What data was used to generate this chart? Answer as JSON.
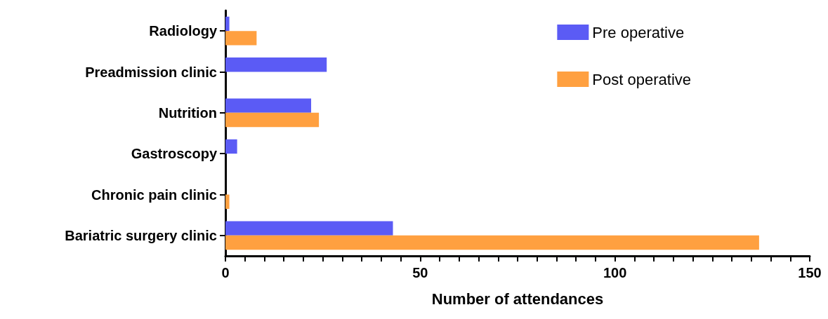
{
  "chart_data": {
    "type": "bar",
    "orientation": "horizontal",
    "xlabel": "Number of attendances",
    "categories": [
      "Radiology",
      "Preadmission clinic",
      "Nutrition",
      "Gastroscopy",
      "Chronic pain clinic",
      "Bariatric surgery clinic"
    ],
    "series": [
      {
        "name": "Pre operative",
        "color": "#5b5bf5",
        "values": [
          1,
          26,
          22,
          3,
          0,
          43
        ]
      },
      {
        "name": "Post operative",
        "color": "#ffa040",
        "values": [
          8,
          0,
          24,
          0,
          1,
          137
        ]
      }
    ],
    "xlim": [
      0,
      150
    ],
    "xticks": [
      0,
      {
        "value": 5,
        "label": null
      },
      {
        "value": 10,
        "label": null
      },
      {
        "value": 15,
        "label": null
      },
      {
        "value": 20,
        "label": null
      },
      {
        "value": 25,
        "label": null
      },
      {
        "value": 30,
        "label": null
      },
      {
        "value": 35,
        "label": null
      },
      {
        "value": 40,
        "label": null
      },
      {
        "value": 45,
        "label": null
      },
      50,
      {
        "value": 55,
        "label": null
      },
      {
        "value": 60,
        "label": null
      },
      {
        "value": 65,
        "label": null
      },
      {
        "value": 70,
        "label": null
      },
      {
        "value": 75,
        "label": null
      },
      {
        "value": 80,
        "label": null
      },
      {
        "value": 85,
        "label": null
      },
      {
        "value": 90,
        "label": null
      },
      {
        "value": 95,
        "label": null
      },
      100,
      {
        "value": 105,
        "label": null
      },
      {
        "value": 110,
        "label": null
      },
      {
        "value": 115,
        "label": null
      },
      {
        "value": 120,
        "label": null
      },
      {
        "value": 125,
        "label": null
      },
      {
        "value": 130,
        "label": null
      },
      {
        "value": 135,
        "label": null
      },
      {
        "value": 140,
        "label": null
      },
      {
        "value": 145,
        "label": null
      },
      150
    ],
    "grid": false,
    "legend": "top right"
  }
}
